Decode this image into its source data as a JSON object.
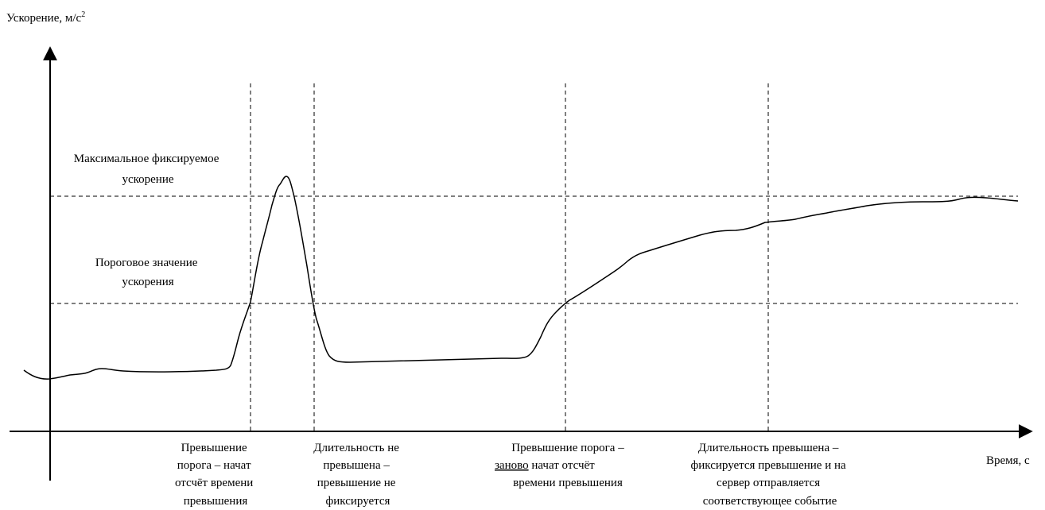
{
  "axes": {
    "y_label": "Ускорение, м/с",
    "y_label_sup": "2",
    "x_label": "Время, с"
  },
  "levels": {
    "max_label_line1": "Максимальное фиксируемое",
    "max_label_line2": "ускорение",
    "threshold_label_line1": "Пороговое значение",
    "threshold_label_line2": "ускорения"
  },
  "events": [
    {
      "lines": [
        "Превышение",
        "порога – начат",
        "отсчёт времени",
        "превышения"
      ]
    },
    {
      "lines": [
        "Длительность не",
        "превышена –",
        "превышение не",
        "фиксируется"
      ]
    },
    {
      "lines": [
        "Превышение порога –",
        "заново",
        " начат отсчёт",
        "времени превышения"
      ]
    },
    {
      "lines": [
        "Длительность превышена –",
        "фиксируется превышение и на",
        "сервер отправляется",
        "соответствующее событие"
      ]
    }
  ]
}
